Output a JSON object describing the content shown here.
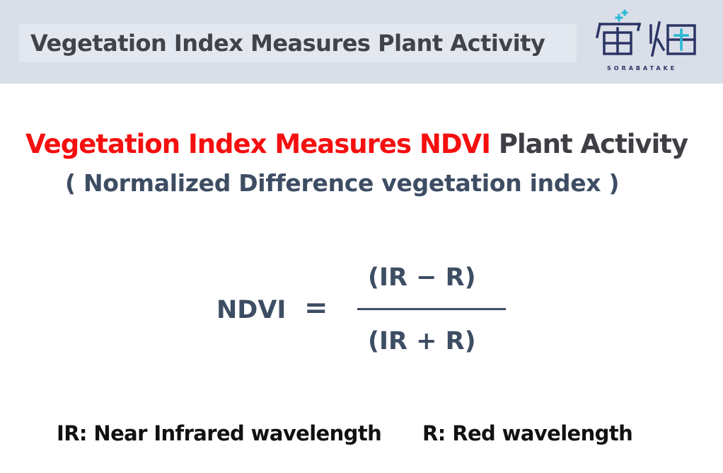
{
  "header": {
    "title": "Vegetation Index Measures Plant Activity",
    "logo": {
      "icon": "sorabatake-logo-icon",
      "wordmark": "SORABATAKE",
      "colors": {
        "navy": "#2c3466",
        "cyan": "#29b8d6"
      }
    },
    "background": "#d9dee8"
  },
  "main": {
    "title_red": "Vegetation Index Measures NDVI",
    "title_dark": "Plant Activity",
    "subtitle": "( Normalized Difference vegetation index )",
    "colors": {
      "red": "#f50f0f",
      "dark": "#3e3f44",
      "slate": "#3d4d63"
    }
  },
  "formula": {
    "lhs": "NDVI",
    "equals": "=",
    "numerator": "(IR − R)",
    "denominator": "(IR + R)"
  },
  "legend": {
    "ir": "IR: Near Infrared wavelength",
    "r": "R: Red wavelength"
  }
}
